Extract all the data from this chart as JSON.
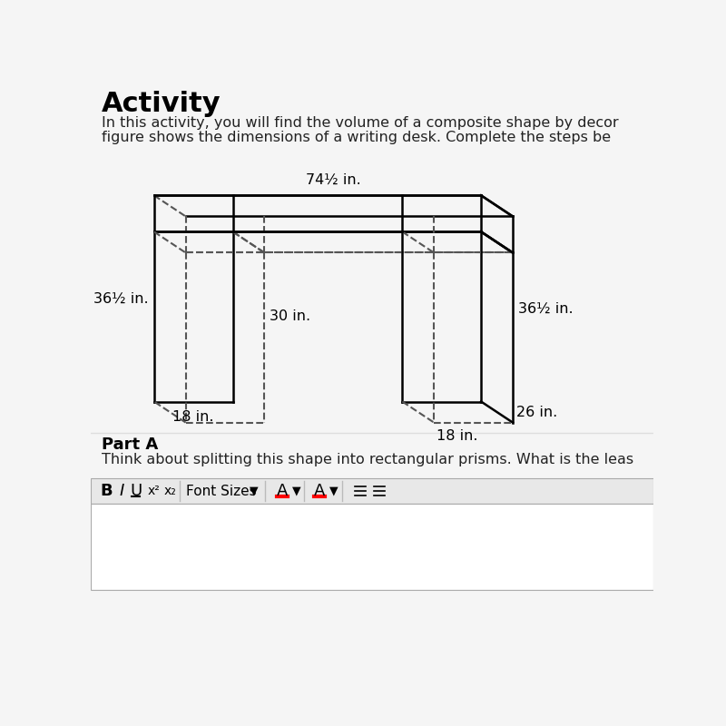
{
  "title": "Activity",
  "desc_line1": "In this activity, you will find the volume of a composite shape by decor",
  "desc_line2": "figure shows the dimensions of a writing desk. Complete the steps be",
  "dim_top": "74½ in.",
  "dim_left": "36½ in.",
  "dim_right": "36½ in.",
  "dim_middle_h": "30 in.",
  "dim_bottom_left": "18 in.",
  "dim_bottom_right": "18 in.",
  "dim_depth": "26 in.",
  "part_a_title": "Part A",
  "part_a_text": "Think about splitting this shape into rectangular prisms. What is the leas",
  "bg_color": "#f5f5f5",
  "line_color": "#000000",
  "dashed_color": "#555555",
  "toolbar_bg": "#e8e8e8",
  "toolbar_border": "#aaaaaa",
  "input_bg": "#f0f0f0"
}
